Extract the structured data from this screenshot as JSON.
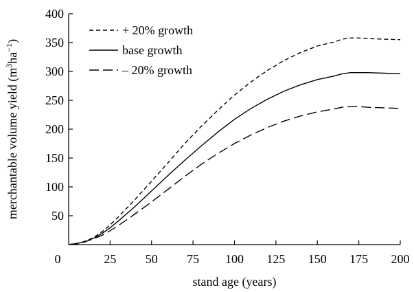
{
  "chart_data": {
    "type": "line",
    "xlabel": "stand age (years)",
    "ylabel_prefix": "merchantable volume yield (m",
    "ylabel_sup1": "3",
    "ylabel_mid": "ha",
    "ylabel_sup2": "−1",
    "ylabel_suffix": ")",
    "xlim": [
      0,
      200
    ],
    "ylim": [
      0,
      400
    ],
    "x_ticks": [
      0,
      25,
      50,
      75,
      100,
      125,
      150,
      175,
      200
    ],
    "y_ticks": [
      50,
      100,
      150,
      200,
      250,
      300,
      350,
      400
    ],
    "x": [
      0,
      5,
      10,
      15,
      20,
      25,
      30,
      40,
      50,
      60,
      70,
      80,
      90,
      100,
      110,
      120,
      130,
      140,
      150,
      160,
      165,
      170,
      175,
      180,
      190,
      200
    ],
    "series": [
      {
        "name": "+ 20% growth",
        "style": "dashed",
        "values": [
          0,
          2,
          6,
          12,
          22,
          34,
          48,
          78,
          110,
          142,
          175,
          205,
          233,
          259,
          282,
          302,
          319,
          333,
          344,
          351,
          356,
          358,
          358,
          357,
          356,
          355
        ]
      },
      {
        "name": "base growth",
        "style": "solid",
        "values": [
          0,
          2,
          5,
          11,
          19,
          29,
          41,
          66,
          93,
          120,
          146,
          171,
          195,
          217,
          236,
          252,
          266,
          277,
          286,
          292,
          296,
          298,
          298,
          298,
          297,
          296
        ]
      },
      {
        "name": "– 20% growth",
        "style": "longdash",
        "values": [
          0,
          1,
          5,
          10,
          16,
          24,
          33,
          53,
          74,
          96,
          118,
          139,
          158,
          175,
          190,
          203,
          214,
          223,
          230,
          235,
          238,
          239,
          239,
          238,
          237,
          236
        ]
      }
    ]
  }
}
